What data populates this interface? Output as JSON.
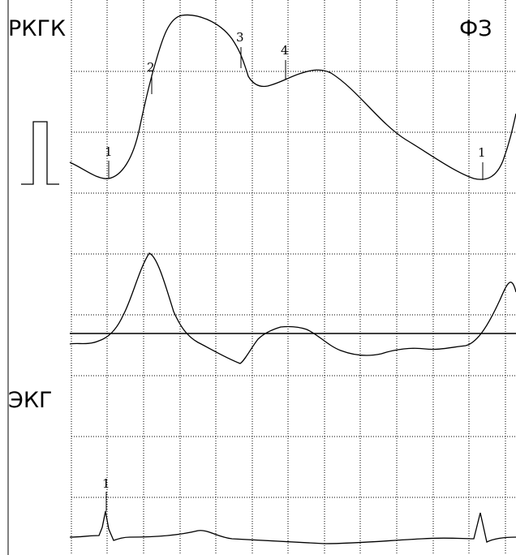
{
  "labels": {
    "rkgk": "РКГК",
    "fz": "ФЗ",
    "ekg": "ЭКГ"
  },
  "markers": {
    "m1_left": "1",
    "m2": "2",
    "m3": "3",
    "m4": "4",
    "m1_right": "1",
    "ekg_1": "1"
  }
}
